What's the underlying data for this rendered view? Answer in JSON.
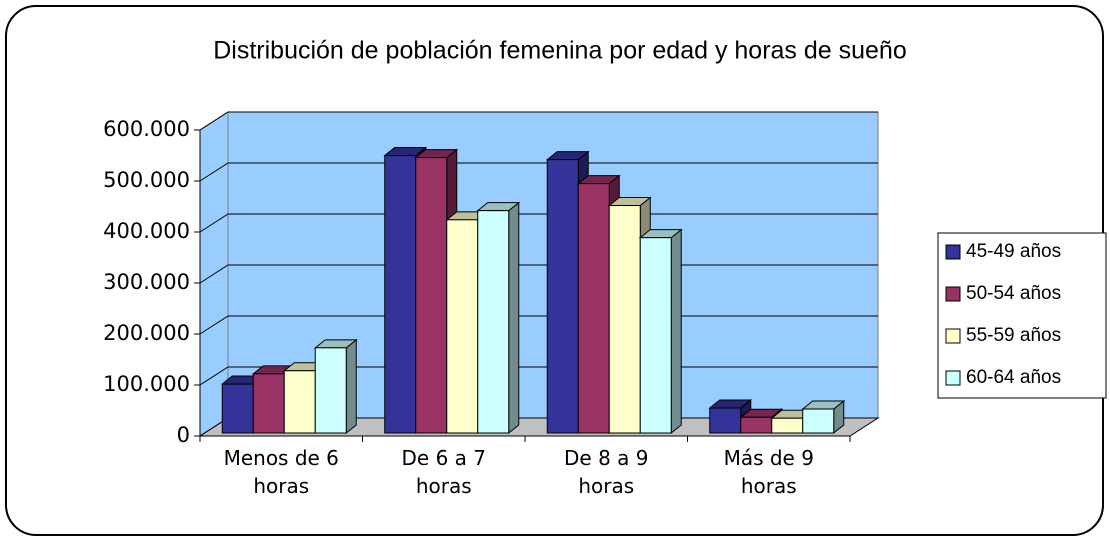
{
  "chart_data": {
    "type": "bar3d",
    "title": "Distribución de población femenina por edad y horas de sueño",
    "categories": [
      "Menos de 6 horas",
      "De 6 a 7 horas",
      "De 8 a 9 horas",
      "Más de 9 horas"
    ],
    "series": [
      {
        "name": "45-49 años",
        "color": "#333399",
        "values": [
          96000,
          544000,
          536000,
          49000
        ]
      },
      {
        "name": "50-54 años",
        "color": "#993366",
        "values": [
          116000,
          540000,
          489000,
          31000
        ]
      },
      {
        "name": "55-59 años",
        "color": "#ffffcc",
        "values": [
          122000,
          418000,
          446000,
          29000
        ]
      },
      {
        "name": "60-64 años",
        "color": "#ccffff",
        "values": [
          167000,
          436000,
          383000,
          47000
        ]
      }
    ],
    "ylim": [
      0,
      600000
    ],
    "yticks": [
      0,
      {
        "value": 100000,
        "label": "100.000"
      },
      {
        "value": 200000,
        "label": "200.000"
      },
      {
        "value": 300000,
        "label": "300.000"
      },
      {
        "value": 400000,
        "label": "400.000"
      },
      {
        "value": 500000,
        "label": "500.000"
      },
      {
        "value": 600000,
        "label": "600.000"
      }
    ],
    "grid": true,
    "wall_color": "#99ccff",
    "legend": "right"
  }
}
